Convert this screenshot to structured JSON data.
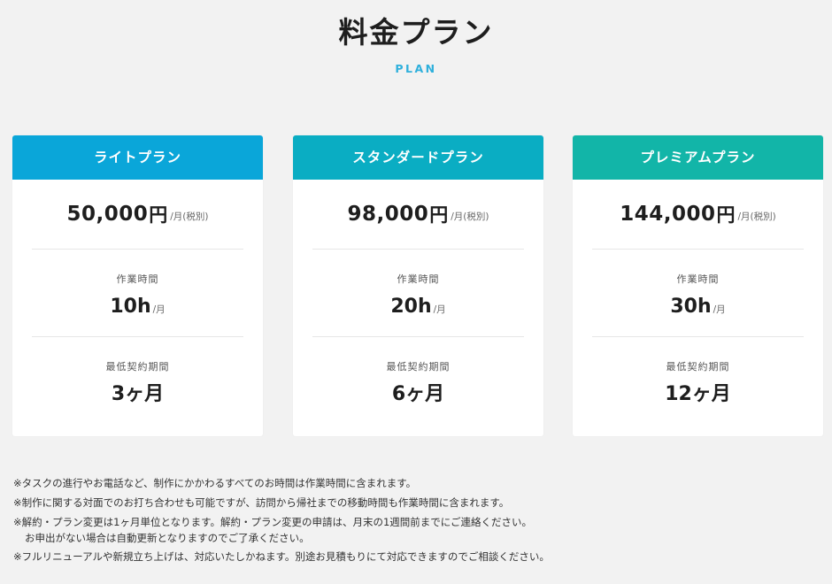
{
  "header": {
    "title": "料金プラン",
    "subtitle": "PLAN",
    "subtitle_color": "#2fb0dc"
  },
  "plans": [
    {
      "name": "ライトプラン",
      "color": "#0aa6d9",
      "price": "50,000",
      "currency": "円",
      "price_unit": "/月(税別)",
      "hours_label": "作業時間",
      "hours": "10h",
      "hours_unit": "/月",
      "term_label": "最低契約期間",
      "term": "3ヶ月"
    },
    {
      "name": "スタンダードプラン",
      "color": "#0aadc3",
      "price": "98,000",
      "currency": "円",
      "price_unit": "/月(税別)",
      "hours_label": "作業時間",
      "hours": "20h",
      "hours_unit": "/月",
      "term_label": "最低契約期間",
      "term": "6ヶ月"
    },
    {
      "name": "プレミアムプラン",
      "color": "#12b5a8",
      "price": "144,000",
      "currency": "円",
      "price_unit": "/月(税別)",
      "hours_label": "作業時間",
      "hours": "30h",
      "hours_unit": "/月",
      "term_label": "最低契約期間",
      "term": "12ヶ月"
    }
  ],
  "notes": [
    [
      "※タスクの進行やお電話など、制作にかかわるすべてのお時間は作業時間に含まれます。"
    ],
    [
      "※制作に関する対面でのお打ち合わせも可能ですが、訪問から帰社までの移動時間も作業時間に含まれます。"
    ],
    [
      "※解約・プラン変更は1ヶ月単位となります。解約・プラン変更の申請は、月末の1週間前までにご連絡ください。",
      "お申出がない場合は自動更新となりますのでご了承ください。"
    ],
    [
      "※フルリニューアルや新規立ち上げは、対応いたしかねます。別途お見積もりにて対応できますのでご相談ください。"
    ]
  ]
}
